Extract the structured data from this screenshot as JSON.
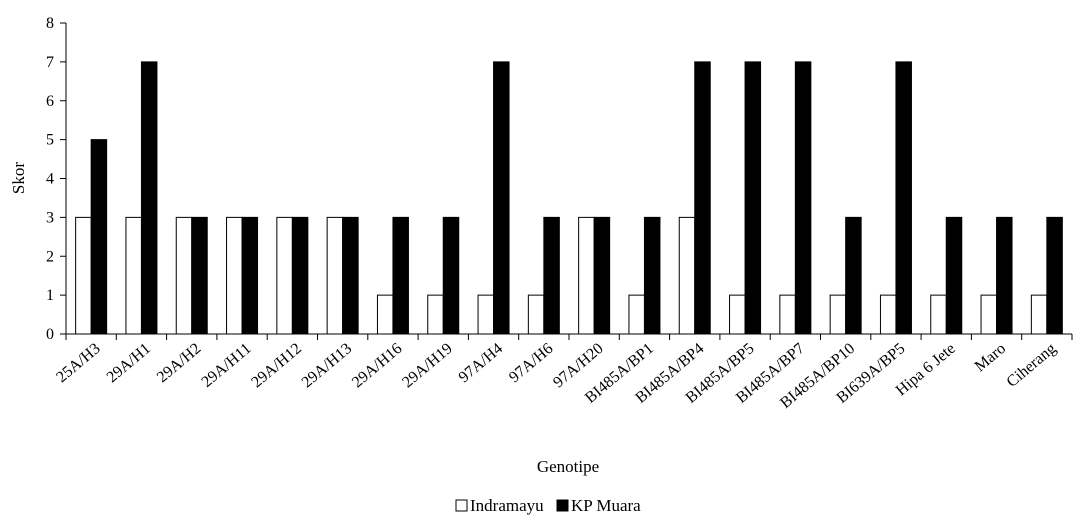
{
  "chart_data": {
    "type": "bar",
    "title": "",
    "xlabel": "Genotipe",
    "ylabel": "Skor",
    "ylim": [
      0,
      8
    ],
    "yticks": [
      0,
      1,
      2,
      3,
      4,
      5,
      6,
      7,
      8
    ],
    "grid": false,
    "legend_position": "bottom",
    "categories": [
      "25A/H3",
      "29A/H1",
      "29A/H2",
      "29A/H11",
      "29A/H12",
      "29A/H13",
      "29A/H16",
      "29A/H19",
      "97A/H4",
      "97A/H6",
      "97A/H20",
      "BI485A/BP1",
      "BI485A/BP4",
      "BI485A/BP5",
      "BI485A/BP7",
      "BI485A/BP10",
      "BI639A/BP5",
      "Hipa 6 Jete",
      "Maro",
      "Ciherang"
    ],
    "series": [
      {
        "name": "Indramayu",
        "color": "#ffffff",
        "stroke": "#000000",
        "values": [
          3,
          3,
          3,
          3,
          3,
          3,
          1,
          1,
          1,
          1,
          3,
          1,
          3,
          1,
          1,
          1,
          1,
          1,
          1,
          1
        ]
      },
      {
        "name": "KP Muara",
        "color": "#000000",
        "stroke": "#000000",
        "values": [
          5,
          7,
          3,
          3,
          3,
          3,
          3,
          3,
          7,
          3,
          3,
          3,
          7,
          7,
          7,
          3,
          7,
          3,
          3,
          3
        ]
      }
    ]
  }
}
